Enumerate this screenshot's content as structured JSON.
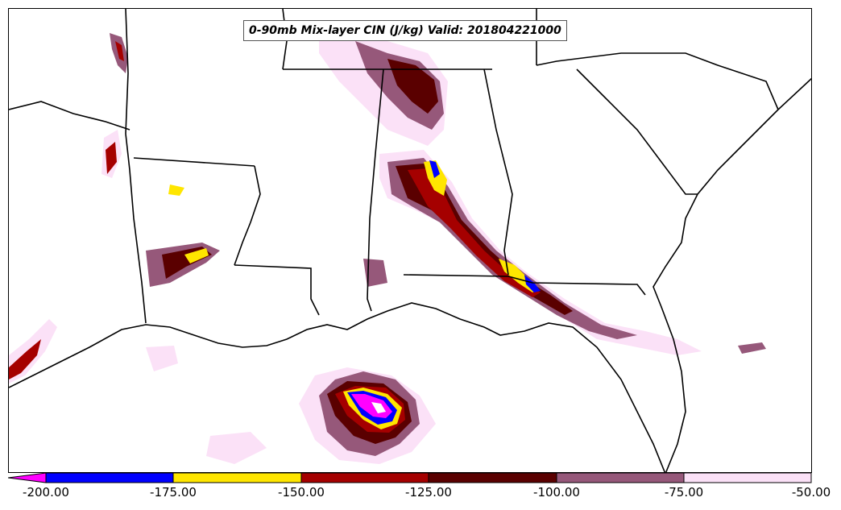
{
  "title": "0-90mb Mix-layer CIN (J/kg) Valid: 201804221000",
  "colorbar": {
    "tick_labels": [
      "-200.00",
      "-175.00",
      "-150.00",
      "-125.00",
      "-100.00",
      "-75.00",
      "-50.00"
    ],
    "colors": [
      "#ff00ff",
      "#0000ff",
      "#ffe600",
      "#a50000",
      "#5a0000",
      "#96587a",
      "#fbe1f7"
    ],
    "extend": "min"
  },
  "map": {
    "region": "southeastern-united-states",
    "land_color": "#ffffff",
    "border_color": "#000000"
  }
}
